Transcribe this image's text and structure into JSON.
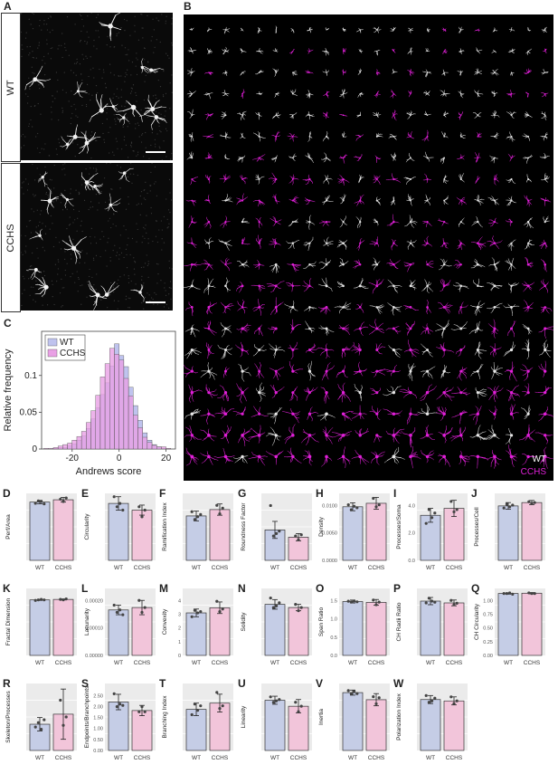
{
  "labels": {
    "A": "A",
    "B": "B",
    "C": "C"
  },
  "panelA": {
    "wt_label": "WT",
    "cchs_label": "CCHS"
  },
  "panelB": {
    "legend_wt": "WT",
    "legend_cchs": "CCHS",
    "wt_color": "#e6e6e6",
    "cchs_color": "#e020d8"
  },
  "colors": {
    "wt": "#c5cde6",
    "cchs": "#f2c5da",
    "wt_hist": "#bfc3ee",
    "cchs_hist": "#e9a0e5"
  },
  "chart_data": [
    {
      "type": "bar",
      "panel": "C",
      "xlabel": "Andrews score",
      "ylabel": "Relative frequency",
      "xlim": [
        -33,
        24
      ],
      "ylim": [
        0,
        0.16
      ],
      "xticks": [
        "-20",
        "0",
        "20"
      ],
      "yticks": [
        "0",
        "0.05",
        "0.1"
      ],
      "legend_position": "top-left",
      "bin_centers": [
        -31,
        -29,
        -27,
        -25,
        -23,
        -21,
        -19,
        -17,
        -15,
        -13,
        -11,
        -9,
        -7,
        -5,
        -3,
        -1,
        1,
        3,
        5,
        7,
        9,
        11,
        13,
        15,
        17,
        19,
        21
      ],
      "series": [
        {
          "name": "WT",
          "values": [
            0.0,
            0.0,
            0.001,
            0.002,
            0.002,
            0.004,
            0.007,
            0.012,
            0.018,
            0.028,
            0.041,
            0.056,
            0.074,
            0.09,
            0.113,
            0.143,
            0.127,
            0.112,
            0.084,
            0.059,
            0.039,
            0.022,
            0.012,
            0.006,
            0.003,
            0.001,
            0.0
          ]
        },
        {
          "name": "CCHS",
          "values": [
            0.001,
            0.001,
            0.002,
            0.004,
            0.006,
            0.008,
            0.012,
            0.017,
            0.024,
            0.036,
            0.052,
            0.073,
            0.098,
            0.116,
            0.137,
            0.129,
            0.121,
            0.096,
            0.072,
            0.046,
            0.029,
            0.016,
            0.009,
            0.005,
            0.003,
            0.003,
            0.001
          ]
        }
      ]
    }
  ],
  "bar_panels": [
    {
      "letter": "D",
      "ylabel": "Perf/Area",
      "ymax": 1.15,
      "ticks": [],
      "wt": 1.0,
      "cchs": 1.04,
      "wt_err": 0.03,
      "cchs_err": 0.04,
      "wt_pts": [
        0.98,
        1.02,
        1.01,
        0.97
      ],
      "cchs_pts": [
        1.05,
        1.01,
        1.07
      ]
    },
    {
      "letter": "E",
      "ylabel": "Circularity",
      "ymax": 0.2,
      "ticks": [],
      "wt": 0.17,
      "cchs": 0.15,
      "wt_err": 0.02,
      "cchs_err": 0.015,
      "wt_pts": [
        0.19,
        0.16,
        0.17,
        0.15
      ],
      "cchs_pts": [
        0.16,
        0.13,
        0.15
      ]
    },
    {
      "letter": "F",
      "ylabel": "Ramification Index",
      "ymax": 9.5,
      "ticks": [],
      "wt": 6.3,
      "cchs": 7.2,
      "wt_err": 0.7,
      "cchs_err": 0.8,
      "wt_pts": [
        6.9,
        5.8,
        6.2,
        6.5
      ],
      "cchs_pts": [
        7.8,
        6.6,
        7.4
      ]
    },
    {
      "letter": "G",
      "ylabel": "Roundness Factor",
      "ymax": 0.55,
      "ticks": [],
      "wt": 0.25,
      "cchs": 0.19,
      "wt_err": 0.07,
      "cchs_err": 0.03,
      "wt_pts": [
        0.45,
        0.2,
        0.22,
        0.24
      ],
      "cchs_pts": [
        0.2,
        0.17,
        0.21
      ]
    },
    {
      "letter": "H",
      "ylabel": "Density",
      "ymax": 0.0135,
      "ticks": [
        "0.0000",
        "0.0050",
        "0.0100"
      ],
      "wt": 0.0108,
      "cchs": 0.0115,
      "wt_err": 0.0008,
      "cchs_err": 0.0012,
      "wt_pts": [
        0.0112,
        0.0102,
        0.0109,
        0.0106
      ],
      "cchs_pts": [
        0.0125,
        0.0108,
        0.0112
      ]
    },
    {
      "letter": "I",
      "ylabel": "Processes/Soma",
      "ymax": 5.8,
      "ticks": [
        "0.0",
        "2.0",
        "4.0"
      ],
      "wt": 3.9,
      "cchs": 4.5,
      "wt_err": 0.6,
      "cchs_err": 0.7,
      "wt_pts": [
        3.2,
        4.4,
        3.7,
        4.1
      ],
      "cchs_pts": [
        5.1,
        4.2,
        4.4
      ]
    },
    {
      "letter": "J",
      "ylabel": "Processes/Cell",
      "ymax": 1.6,
      "ticks": [],
      "wt": 1.3,
      "cchs": 1.38,
      "wt_err": 0.08,
      "cchs_err": 0.05,
      "wt_pts": [
        1.25,
        1.34,
        1.28,
        1.32
      ],
      "cchs_pts": [
        1.4,
        1.36,
        1.38
      ]
    },
    {
      "letter": "K",
      "ylabel": "Fractal Dimension",
      "ymax": 1.4,
      "ticks": [],
      "wt": 1.16,
      "cchs": 1.17,
      "wt_err": 0.01,
      "cchs_err": 0.01,
      "wt_pts": [
        1.15,
        1.16,
        1.17,
        1.16
      ],
      "cchs_pts": [
        1.17,
        1.16,
        1.18
      ]
    },
    {
      "letter": "L",
      "ylabel": "Lacunarity",
      "ymax": 0.00028,
      "ticks": [
        "0.00000",
        "0.00010",
        "0.00020"
      ],
      "wt": 0.00019,
      "cchs": 0.0002,
      "wt_err": 2e-05,
      "cchs_err": 3e-05,
      "wt_pts": [
        0.00021,
        0.00018,
        0.00019,
        0.00017
      ],
      "cchs_pts": [
        0.00023,
        0.00018,
        0.0002
      ]
    },
    {
      "letter": "M",
      "ylabel": "Convexity",
      "ymax": 5.2,
      "ticks": [
        "0",
        "1",
        "2",
        "3",
        "4"
      ],
      "wt": 3.3,
      "cchs": 3.7,
      "wt_err": 0.3,
      "cchs_err": 0.45,
      "wt_pts": [
        3.0,
        3.5,
        3.3,
        3.4
      ],
      "cchs_pts": [
        4.2,
        3.4,
        3.6
      ]
    },
    {
      "letter": "N",
      "ylabel": "Solidity",
      "ymax": 0.42,
      "ticks": [],
      "wt": 0.32,
      "cchs": 0.3,
      "wt_err": 0.03,
      "cchs_err": 0.02,
      "wt_pts": [
        0.36,
        0.3,
        0.31,
        0.33
      ],
      "cchs_pts": [
        0.32,
        0.28,
        0.3
      ]
    },
    {
      "letter": "O",
      "ylabel": "Span Ratio",
      "ymax": 2.3,
      "ticks": [
        "0.0",
        "0.5",
        "1.0",
        "1.5"
      ],
      "wt": 1.85,
      "cchs": 1.82,
      "wt_err": 0.05,
      "cchs_err": 0.1,
      "wt_pts": [
        1.86,
        1.83,
        1.87,
        1.84
      ],
      "cchs_pts": [
        1.9,
        1.74,
        1.83
      ]
    },
    {
      "letter": "P",
      "ylabel": "CH Radii Ratio",
      "ymax": 1.85,
      "ticks": [],
      "wt": 1.5,
      "cchs": 1.45,
      "wt_err": 0.1,
      "cchs_err": 0.08,
      "wt_pts": [
        1.45,
        1.58,
        1.5,
        1.47
      ],
      "cchs_pts": [
        1.52,
        1.4,
        1.44
      ]
    },
    {
      "letter": "Q",
      "ylabel": "CH Circularity",
      "ymax": 1.05,
      "ticks": [
        "0.00",
        "0.25",
        "0.50",
        "0.75",
        "1.00"
      ],
      "wt": 0.97,
      "cchs": 0.975,
      "wt_err": 0.01,
      "cchs_err": 0.01,
      "wt_pts": [
        0.97,
        0.97,
        0.98,
        0.96
      ],
      "cchs_pts": [
        0.98,
        0.97,
        0.97
      ]
    },
    {
      "letter": "R",
      "ylabel": "Skeleton/Processes",
      "ymax": 120,
      "ticks": [],
      "wt": 47,
      "cchs": 65,
      "wt_err": 12,
      "cchs_err": 45,
      "wt_pts": [
        42,
        50,
        38,
        55
      ],
      "cchs_pts": [
        90,
        45,
        60
      ]
    },
    {
      "letter": "S",
      "ylabel": "Endpoints/Branchpoints",
      "ymax": 2.6,
      "ticks": [
        "0.00",
        "0.50",
        "1.00",
        "1.50",
        "2.00",
        "2.50"
      ],
      "wt": 1.88,
      "cchs": 1.55,
      "wt_err": 0.3,
      "cchs_err": 0.2,
      "wt_pts": [
        2.2,
        1.7,
        1.8,
        1.75
      ],
      "cchs_pts": [
        1.5,
        1.7,
        1.5
      ]
    },
    {
      "letter": "T",
      "ylabel": "Branching Index",
      "ymax": 0.75,
      "ticks": [],
      "wt": 0.46,
      "cchs": 0.53,
      "wt_err": 0.07,
      "cchs_err": 0.1,
      "wt_pts": [
        0.4,
        0.52,
        0.45,
        0.5
      ],
      "cchs_pts": [
        0.65,
        0.47,
        0.5
      ]
    },
    {
      "letter": "U",
      "ylabel": "Linearity",
      "ymax": 5.0,
      "ticks": [],
      "wt": 3.75,
      "cchs": 3.3,
      "wt_err": 0.3,
      "cchs_err": 0.5,
      "wt_pts": [
        4.0,
        3.6,
        3.7,
        3.8
      ],
      "cchs_pts": [
        3.6,
        2.9,
        3.3
      ]
    },
    {
      "letter": "V",
      "ylabel": "Inertia",
      "ymax": 6.6,
      "ticks": [],
      "wt": 5.7,
      "cchs": 5.0,
      "wt_err": 0.25,
      "cchs_err": 0.6,
      "wt_pts": [
        5.9,
        5.6,
        5.8,
        5.6
      ],
      "cchs_pts": [
        5.3,
        4.6,
        5.2
      ]
    },
    {
      "letter": "W",
      "ylabel": "Polarization Index",
      "ymax": 0.5,
      "ticks": [],
      "wt": 0.38,
      "cchs": 0.37,
      "wt_err": 0.03,
      "cchs_err": 0.03,
      "wt_pts": [
        0.41,
        0.36,
        0.37,
        0.39
      ],
      "cchs_pts": [
        0.4,
        0.35,
        0.37
      ]
    }
  ],
  "group_labels": {
    "wt": "WT",
    "cchs": "CCHS"
  }
}
